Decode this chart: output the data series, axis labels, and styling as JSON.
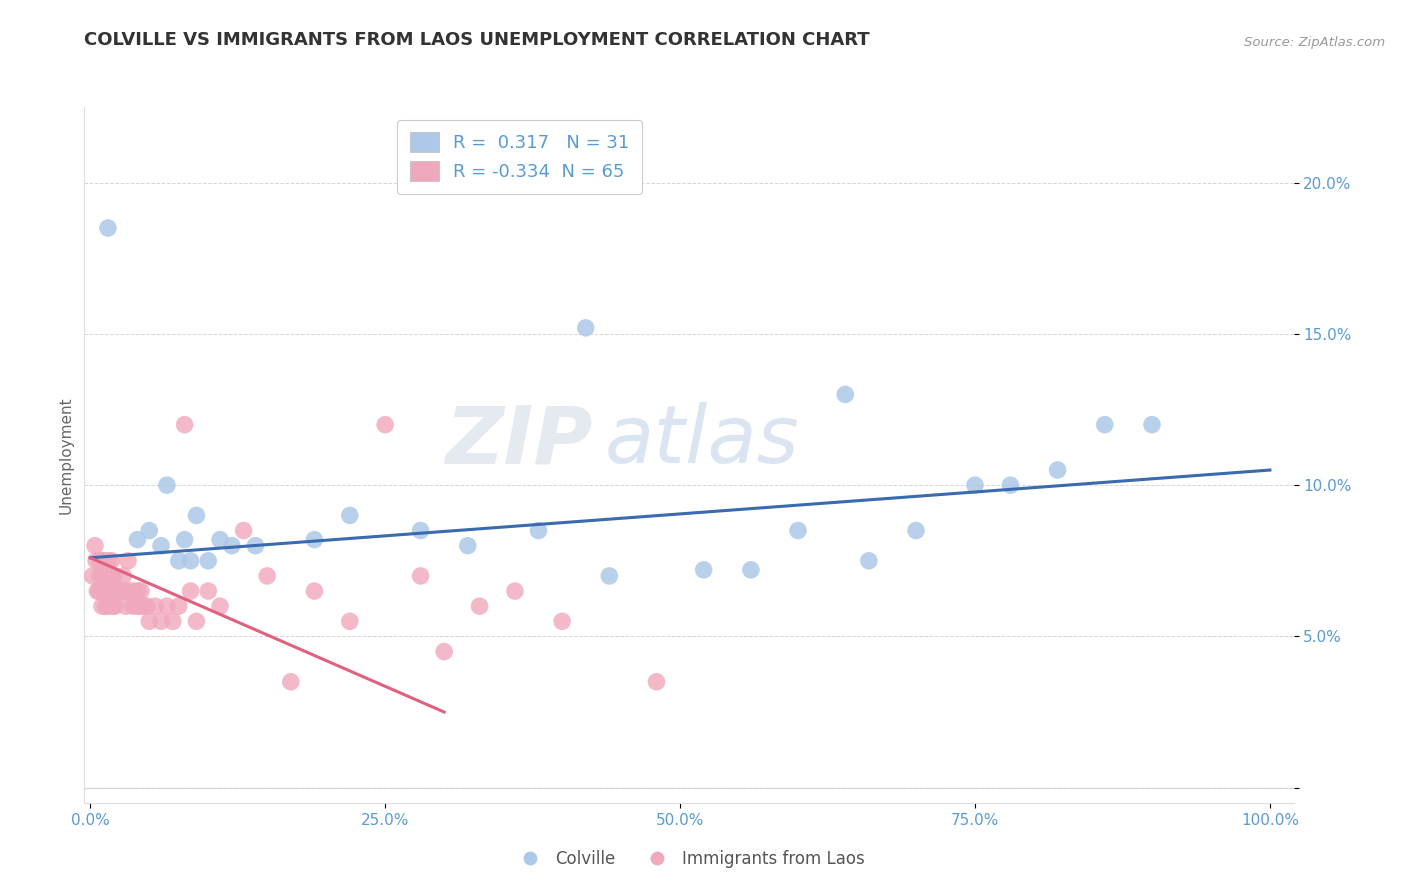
{
  "title": "COLVILLE VS IMMIGRANTS FROM LAOS UNEMPLOYMENT CORRELATION CHART",
  "source_text": "Source: ZipAtlas.com",
  "ylabel": "Unemployment",
  "xlim": [
    -0.005,
    1.02
  ],
  "ylim": [
    -0.005,
    0.225
  ],
  "xticks": [
    0.0,
    0.25,
    0.5,
    0.75,
    1.0
  ],
  "xticklabels": [
    "0.0%",
    "25.0%",
    "50.0%",
    "75.0%",
    "100.0%"
  ],
  "yticks": [
    0.0,
    0.05,
    0.1,
    0.15,
    0.2
  ],
  "yticklabels": [
    "",
    "5.0%",
    "10.0%",
    "15.0%",
    "20.0%"
  ],
  "blue_R": 0.317,
  "blue_N": 31,
  "pink_R": -0.334,
  "pink_N": 65,
  "blue_color": "#adc8e8",
  "pink_color": "#f0a8bc",
  "blue_line_color": "#3a6baf",
  "pink_line_color": "#e06080",
  "watermark_zip": "ZIP",
  "watermark_atlas": "atlas",
  "background_color": "#ffffff",
  "blue_x": [
    0.015,
    0.04,
    0.05,
    0.06,
    0.065,
    0.075,
    0.08,
    0.085,
    0.09,
    0.1,
    0.11,
    0.12,
    0.14,
    0.19,
    0.22,
    0.28,
    0.32,
    0.38,
    0.42,
    0.44,
    0.52,
    0.56,
    0.6,
    0.64,
    0.66,
    0.7,
    0.75,
    0.78,
    0.82,
    0.86,
    0.9
  ],
  "blue_y": [
    0.185,
    0.082,
    0.085,
    0.08,
    0.1,
    0.075,
    0.082,
    0.075,
    0.09,
    0.075,
    0.082,
    0.08,
    0.08,
    0.082,
    0.09,
    0.085,
    0.08,
    0.085,
    0.152,
    0.07,
    0.072,
    0.072,
    0.085,
    0.13,
    0.075,
    0.085,
    0.1,
    0.1,
    0.105,
    0.12,
    0.12
  ],
  "pink_x": [
    0.002,
    0.004,
    0.005,
    0.006,
    0.007,
    0.008,
    0.008,
    0.009,
    0.01,
    0.01,
    0.01,
    0.011,
    0.012,
    0.013,
    0.013,
    0.014,
    0.015,
    0.015,
    0.016,
    0.017,
    0.018,
    0.018,
    0.019,
    0.02,
    0.02,
    0.021,
    0.022,
    0.025,
    0.027,
    0.028,
    0.03,
    0.03,
    0.032,
    0.034,
    0.036,
    0.038,
    0.04,
    0.04,
    0.042,
    0.043,
    0.045,
    0.048,
    0.05,
    0.055,
    0.06,
    0.065,
    0.07,
    0.075,
    0.08,
    0.085,
    0.09,
    0.1,
    0.11,
    0.13,
    0.15,
    0.17,
    0.19,
    0.22,
    0.25,
    0.28,
    0.3,
    0.33,
    0.36,
    0.4,
    0.48
  ],
  "pink_y": [
    0.07,
    0.08,
    0.075,
    0.065,
    0.065,
    0.075,
    0.07,
    0.065,
    0.075,
    0.065,
    0.06,
    0.07,
    0.075,
    0.065,
    0.06,
    0.07,
    0.065,
    0.06,
    0.075,
    0.065,
    0.075,
    0.07,
    0.06,
    0.07,
    0.065,
    0.06,
    0.065,
    0.065,
    0.065,
    0.07,
    0.065,
    0.06,
    0.075,
    0.065,
    0.06,
    0.065,
    0.065,
    0.06,
    0.06,
    0.065,
    0.06,
    0.06,
    0.055,
    0.06,
    0.055,
    0.06,
    0.055,
    0.06,
    0.12,
    0.065,
    0.055,
    0.065,
    0.06,
    0.085,
    0.07,
    0.035,
    0.065,
    0.055,
    0.12,
    0.07,
    0.045,
    0.06,
    0.065,
    0.055,
    0.035
  ],
  "blue_line_x0": 0.0,
  "blue_line_x1": 1.0,
  "blue_line_y0": 0.076,
  "blue_line_y1": 0.105,
  "pink_line_x0": 0.0,
  "pink_line_x1": 0.3,
  "pink_line_y0": 0.076,
  "pink_line_y1": 0.025
}
